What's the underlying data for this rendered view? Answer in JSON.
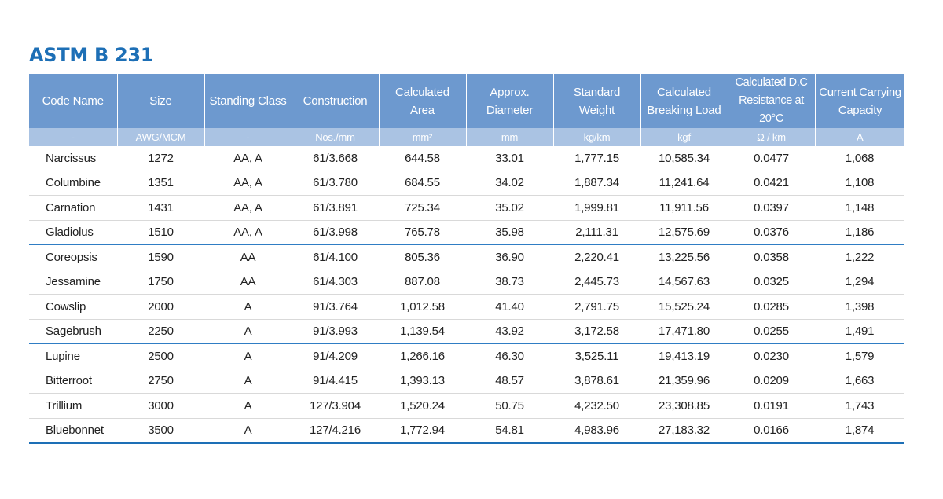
{
  "title": "ASTM B 231",
  "columns": [
    {
      "name": "Code Name",
      "unit": "-"
    },
    {
      "name": "Size",
      "unit": "AWG/MCM"
    },
    {
      "name": "Standing Class",
      "unit": "-"
    },
    {
      "name": "Construction",
      "unit": "Nos./mm"
    },
    {
      "name": "Calculated Area",
      "unit": "mm²"
    },
    {
      "name": "Approx. Diameter",
      "unit": "mm"
    },
    {
      "name": "Standard Weight",
      "unit": "kg/km"
    },
    {
      "name": "Calculated Breaking Load",
      "unit": "kgf"
    },
    {
      "name": "Calculated D.C Resistance at 20°C",
      "unit": "Ω / km"
    },
    {
      "name": "Current Carrying Capacity",
      "unit": "A"
    }
  ],
  "rows": [
    [
      "Narcissus",
      "1272",
      "AA, A",
      "61/3.668",
      "644.58",
      "33.01",
      "1,777.15",
      "10,585.34",
      "0.0477",
      "1,068"
    ],
    [
      "Columbine",
      "1351",
      "AA, A",
      "61/3.780",
      "684.55",
      "34.02",
      "1,887.34",
      "11,241.64",
      "0.0421",
      "1,108"
    ],
    [
      "Carnation",
      "1431",
      "AA, A",
      "61/3.891",
      "725.34",
      "35.02",
      "1,999.81",
      "11,911.56",
      "0.0397",
      "1,148"
    ],
    [
      "Gladiolus",
      "1510",
      "AA, A",
      "61/3.998",
      "765.78",
      "35.98",
      "2,111.31",
      "12,575.69",
      "0.0376",
      "1,186"
    ],
    [
      "Coreopsis",
      "1590",
      "AA",
      "61/4.100",
      "805.36",
      "36.90",
      "2,220.41",
      "13,225.56",
      "0.0358",
      "1,222"
    ],
    [
      "Jessamine",
      "1750",
      "AA",
      "61/4.303",
      "887.08",
      "38.73",
      "2,445.73",
      "14,567.63",
      "0.0325",
      "1,294"
    ],
    [
      "Cowslip",
      "2000",
      "A",
      "91/3.764",
      "1,012.58",
      "41.40",
      "2,791.75",
      "15,525.24",
      "0.0285",
      "1,398"
    ],
    [
      "Sagebrush",
      "2250",
      "A",
      "91/3.993",
      "1,139.54",
      "43.92",
      "3,172.58",
      "17,471.80",
      "0.0255",
      "1,491"
    ],
    [
      "Lupine",
      "2500",
      "A",
      "91/4.209",
      "1,266.16",
      "46.30",
      "3,525.11",
      "19,413.19",
      "0.0230",
      "1,579"
    ],
    [
      "Bitterroot",
      "2750",
      "A",
      "91/4.415",
      "1,393.13",
      "48.57",
      "3,878.61",
      "21,359.96",
      "0.0209",
      "1,663"
    ],
    [
      "Trillium",
      "3000",
      "A",
      "127/3.904",
      "1,520.24",
      "50.75",
      "4,232.50",
      "23,308.85",
      "0.0191",
      "1,743"
    ],
    [
      "Bluebonnet",
      "3500",
      "A",
      "127/4.216",
      "1,772.94",
      "54.81",
      "4,983.96",
      "27,183.32",
      "0.0166",
      "1,874"
    ]
  ],
  "colors": {
    "title": "#1d6fb6",
    "header_bg": "#6d99cf",
    "units_bg": "#aac3e3",
    "separator": "#2f7dc4"
  }
}
